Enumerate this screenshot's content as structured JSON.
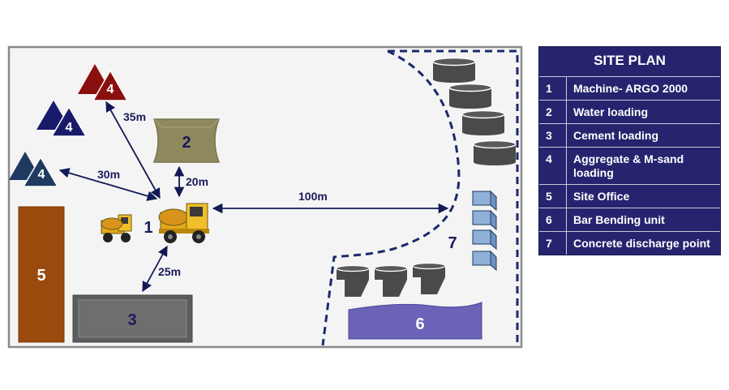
{
  "legend": {
    "title": "SITE PLAN",
    "items": [
      {
        "num": "1",
        "label": "Machine- ARGO 2000"
      },
      {
        "num": "2",
        "label": "Water loading"
      },
      {
        "num": "3",
        "label": "Cement loading"
      },
      {
        "num": "4",
        "label": "Aggregate & M-sand loading"
      },
      {
        "num": "5",
        "label": "Site Office"
      },
      {
        "num": "6",
        "label": "Bar Bending unit"
      },
      {
        "num": "7",
        "label": "Concrete discharge point"
      }
    ]
  },
  "map": {
    "aggregate_label": "4",
    "water_label": "2",
    "cement_label": "3",
    "office_label": "5",
    "machine_label": "1",
    "bar_bending_label": "6",
    "discharge_label": "7",
    "distances": {
      "to_aggregate_top": "35m",
      "to_aggregate_left": "30m",
      "to_water": "20m",
      "to_cement": "25m",
      "to_discharge": "100m"
    }
  },
  "colors": {
    "aggregate_top": "#8b0f0f",
    "aggregate_mid": "#1a1a6b",
    "aggregate_left": "#1f3a60",
    "water": "#8f8a5e",
    "cement": "#5c5c5c",
    "office": "#9a4a0d",
    "bar_bending": "#6a63b8",
    "legend_bg": "#26246e",
    "boundary": "#1a2a6b"
  }
}
